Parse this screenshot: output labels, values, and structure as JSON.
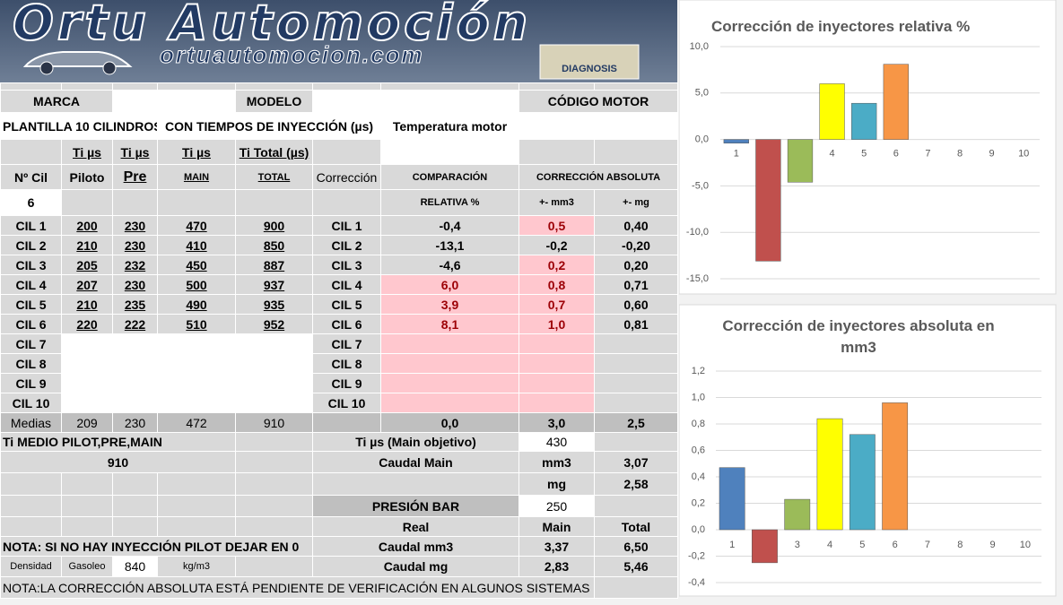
{
  "banner": {
    "title": "Ortu Automoción",
    "website": "ortuautomocion.com",
    "logo": "DIAGNOSIS"
  },
  "sheet": {
    "rows": [
      [
        "MARCA",
        "MODELO",
        "CÓDIGO MOTOR"
      ],
      [
        "PLANTILLA 10 CILINDROS",
        "CON TIEMPOS DE INYECCIÓN (µs)",
        "Temperatura motor"
      ],
      [
        "Ti  µs",
        "Ti  µs",
        "Ti  µs",
        "Ti Total (µs)"
      ],
      [
        "Nº Cil",
        "Piloto",
        "Pre",
        "MAIN",
        "TOTAL",
        "Corrección",
        "COMPARACIÓN",
        "CORRECCIÓN ABSOLUTA"
      ],
      [
        "6",
        "RELATIVA %",
        "+- mm3",
        "+- mg"
      ],
      [
        "CIL 1",
        "200",
        "230",
        "470",
        "900",
        "CIL 1",
        "-0,4",
        "0,5",
        "0,40"
      ],
      [
        "CIL 2",
        "210",
        "230",
        "410",
        "850",
        "CIL 2",
        "-13,1",
        "-0,2",
        "-0,20"
      ],
      [
        "CIL 3",
        "205",
        "232",
        "450",
        "887",
        "CIL 3",
        "-4,6",
        "0,2",
        "0,20"
      ],
      [
        "CIL 4",
        "207",
        "230",
        "500",
        "937",
        "CIL 4",
        "6,0",
        "0,8",
        "0,71"
      ],
      [
        "CIL 5",
        "210",
        "235",
        "490",
        "935",
        "CIL 5",
        "3,9",
        "0,7",
        "0,60"
      ],
      [
        "CIL 6",
        "220",
        "222",
        "510",
        "952",
        "CIL 6",
        "8,1",
        "1,0",
        "0,81"
      ],
      [
        "CIL 7",
        "CIL 7"
      ],
      [
        "CIL 8",
        "CIL 8"
      ],
      [
        "CIL 9",
        "CIL 9"
      ],
      [
        "CIL 10",
        "CIL 10"
      ],
      [
        "Medias",
        "209",
        "230",
        "472",
        "910",
        "0,0",
        "3,0",
        "2,5"
      ],
      [
        "Ti MEDIO PILOT,PRE,MAIN",
        "Ti  µs (Main objetivo)",
        "430"
      ],
      [
        "910",
        "Caudal Main",
        "mm3",
        "3,07"
      ],
      [
        "mg",
        "2,58"
      ],
      [
        "PRESIÓN BAR",
        "250"
      ],
      [
        "Real",
        "Main",
        "Total"
      ],
      [
        "NOTA: SI NO HAY INYECCIÓN PILOT DEJAR EN  0",
        "Caudal  mm3",
        "3,37",
        "6,50"
      ],
      [
        "Densidad",
        "Gasoleo",
        "840",
        "kg/m3",
        "Caudal mg",
        "2,83",
        "5,46"
      ],
      [
        "NOTA:LA CORRECCIÓN ABSOLUTA ESTÁ PENDIENTE DE VERIFICACIÓN EN ALGUNOS SISTEMAS"
      ]
    ]
  },
  "chart_data": [
    {
      "type": "bar",
      "title": "Corrección de inyectores relativa %",
      "categories": [
        "1",
        "2",
        "3",
        "4",
        "5",
        "6",
        "7",
        "8",
        "9",
        "10"
      ],
      "values": [
        -0.4,
        -13.1,
        -4.6,
        6.0,
        3.9,
        8.1,
        null,
        null,
        null,
        null
      ],
      "colors": [
        "#4f81bd",
        "#c0504d",
        "#9bbb59",
        "#ffff00",
        "#4bacc6",
        "#f79646"
      ],
      "ylim": [
        -15,
        10
      ],
      "yticks": [
        {
          "value": -15,
          "label": "-15,0"
        },
        {
          "value": -10,
          "label": "-10,0"
        },
        {
          "value": -5,
          "label": "-5,0"
        },
        {
          "value": 0,
          "label": "0,0"
        },
        {
          "value": 5,
          "label": "5,0"
        },
        {
          "value": 10,
          "label": "10,0"
        }
      ],
      "grid": true
    },
    {
      "type": "bar",
      "title": "Corrección de inyectores absoluta en mm3",
      "categories": [
        "1",
        "2",
        "3",
        "4",
        "5",
        "6",
        "7",
        "8",
        "9",
        "10"
      ],
      "values": [
        0.47,
        -0.25,
        0.23,
        0.84,
        0.72,
        0.96,
        null,
        null,
        null,
        null
      ],
      "colors": [
        "#4f81bd",
        "#c0504d",
        "#9bbb59",
        "#ffff00",
        "#4bacc6",
        "#f79646"
      ],
      "ylim": [
        -0.4,
        1.2
      ],
      "yticks": [
        {
          "value": -0.4,
          "label": "-0,4"
        },
        {
          "value": -0.2,
          "label": "-0,2"
        },
        {
          "value": 0,
          "label": "0,0"
        },
        {
          "value": 0.2,
          "label": "0,2"
        },
        {
          "value": 0.4,
          "label": "0,4"
        },
        {
          "value": 0.6,
          "label": "0,6"
        },
        {
          "value": 0.8,
          "label": "0,8"
        },
        {
          "value": 1.0,
          "label": "1,0"
        },
        {
          "value": 1.2,
          "label": "1,2"
        }
      ],
      "grid": true
    }
  ]
}
